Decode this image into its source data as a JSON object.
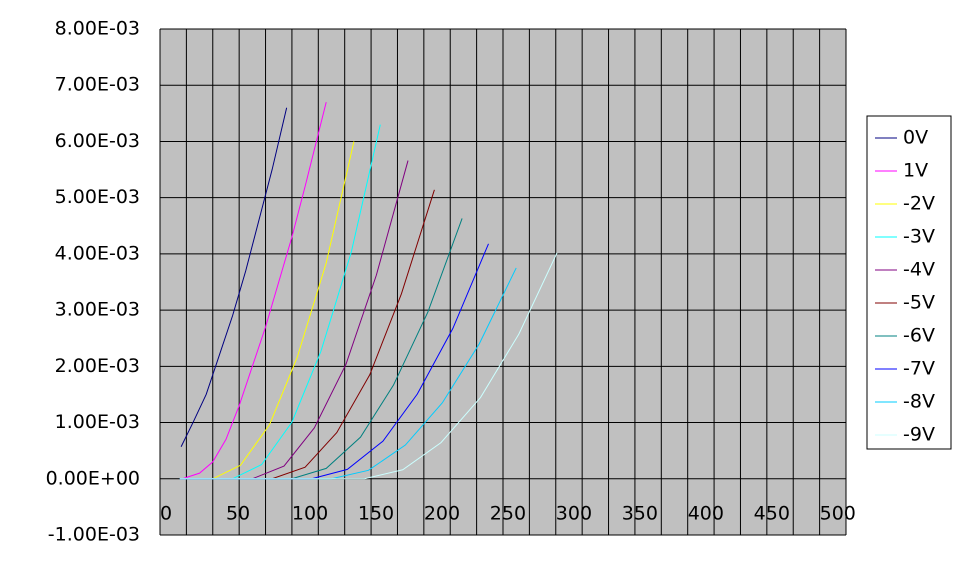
{
  "chart_data": {
    "type": "line",
    "xlim": [
      0,
      520
    ],
    "xticks": [
      0,
      50,
      100,
      150,
      200,
      250,
      300,
      350,
      400,
      450,
      500
    ],
    "xminorticks": [
      0,
      20,
      40,
      60,
      80,
      100,
      120,
      140,
      160,
      180,
      200,
      220,
      240,
      260,
      280,
      300,
      320,
      340,
      360,
      380,
      400,
      420,
      440,
      460,
      480,
      500,
      520
    ],
    "ylim": [
      -0.001,
      0.008
    ],
    "yticks": [
      {
        "value": -0.001,
        "label": "-1.00E-03"
      },
      {
        "value": 0,
        "label": "0.00E+00"
      },
      {
        "value": 0.001,
        "label": "1.00E-03"
      },
      {
        "value": 0.002,
        "label": "2.00E-03"
      },
      {
        "value": 0.003,
        "label": "3.00E-03"
      },
      {
        "value": 0.004,
        "label": "4.00E-03"
      },
      {
        "value": 0.005,
        "label": "5.00E-03"
      },
      {
        "value": 0.006,
        "label": "6.00E-03"
      },
      {
        "value": 0.007,
        "label": "7.00E-03"
      },
      {
        "value": 0.008,
        "label": "8.00E-03"
      }
    ],
    "grid": true,
    "legend": "right",
    "series": [
      {
        "name": "0V",
        "color": "#000080",
        "x": [
          16,
          25,
          35,
          45,
          55,
          65,
          75,
          85,
          96
        ],
        "values": [
          0.00057,
          0.001,
          0.0015,
          0.0022,
          0.0029,
          0.0037,
          0.0046,
          0.0055,
          0.0066
        ]
      },
      {
        "name": "1V",
        "color": "#ff00ff",
        "x": [
          17,
          30,
          40,
          50,
          60,
          70,
          80,
          90,
          100,
          110,
          126
        ],
        "values": [
          0,
          0.0001,
          0.0003,
          0.0007,
          0.0013,
          0.002,
          0.0027,
          0.0035,
          0.0043,
          0.0052,
          0.0067
        ]
      },
      {
        "name": "-2V",
        "color": "#ffff00",
        "x": [
          15,
          40,
          61,
          83,
          104,
          126,
          147
        ],
        "values": [
          0,
          0,
          0.00024,
          0.00096,
          0.00216,
          0.00384,
          0.006
        ]
      },
      {
        "name": "-3V",
        "color": "#00ffff",
        "x": [
          15,
          55,
          77,
          100,
          122,
          145,
          167
        ],
        "values": [
          0,
          0,
          0.000252,
          0.001008,
          0.002268,
          0.004032,
          0.0063
        ]
      },
      {
        "name": "-4V",
        "color": "#800080",
        "x": [
          15,
          70,
          94,
          117,
          141,
          164,
          188
        ],
        "values": [
          0,
          0,
          0.000226,
          0.000906,
          0.002038,
          0.003622,
          0.00566
        ]
      },
      {
        "name": "-5V",
        "color": "#800000",
        "x": [
          15,
          85,
          110,
          134,
          159,
          183,
          208
        ],
        "values": [
          0,
          0,
          0.000206,
          0.000822,
          0.00185,
          0.00329,
          0.00514
        ]
      },
      {
        "name": "-6V",
        "color": "#008080",
        "x": [
          15,
          100,
          126,
          152,
          177,
          203,
          229
        ],
        "values": [
          0,
          0,
          0.000185,
          0.000741,
          0.001667,
          0.002963,
          0.00463
        ]
      },
      {
        "name": "-7V",
        "color": "#0000ff",
        "x": [
          15,
          115,
          142,
          169,
          195,
          222,
          249
        ],
        "values": [
          0,
          0,
          0.000167,
          0.000669,
          0.001505,
          0.002675,
          0.00418
        ]
      },
      {
        "name": "-8V",
        "color": "#00ccff",
        "x": [
          15,
          130,
          158,
          186,
          214,
          242,
          270
        ],
        "values": [
          0,
          0,
          0.00015,
          0.0006,
          0.00135,
          0.0024,
          0.00375
        ]
      },
      {
        "name": "-9V",
        "color": "#ccffff",
        "x": [
          15,
          155,
          184,
          213,
          243,
          272,
          301
        ],
        "values": [
          0,
          0,
          0.000161,
          0.000643,
          0.001447,
          0.002573,
          0.00402
        ]
      }
    ]
  }
}
